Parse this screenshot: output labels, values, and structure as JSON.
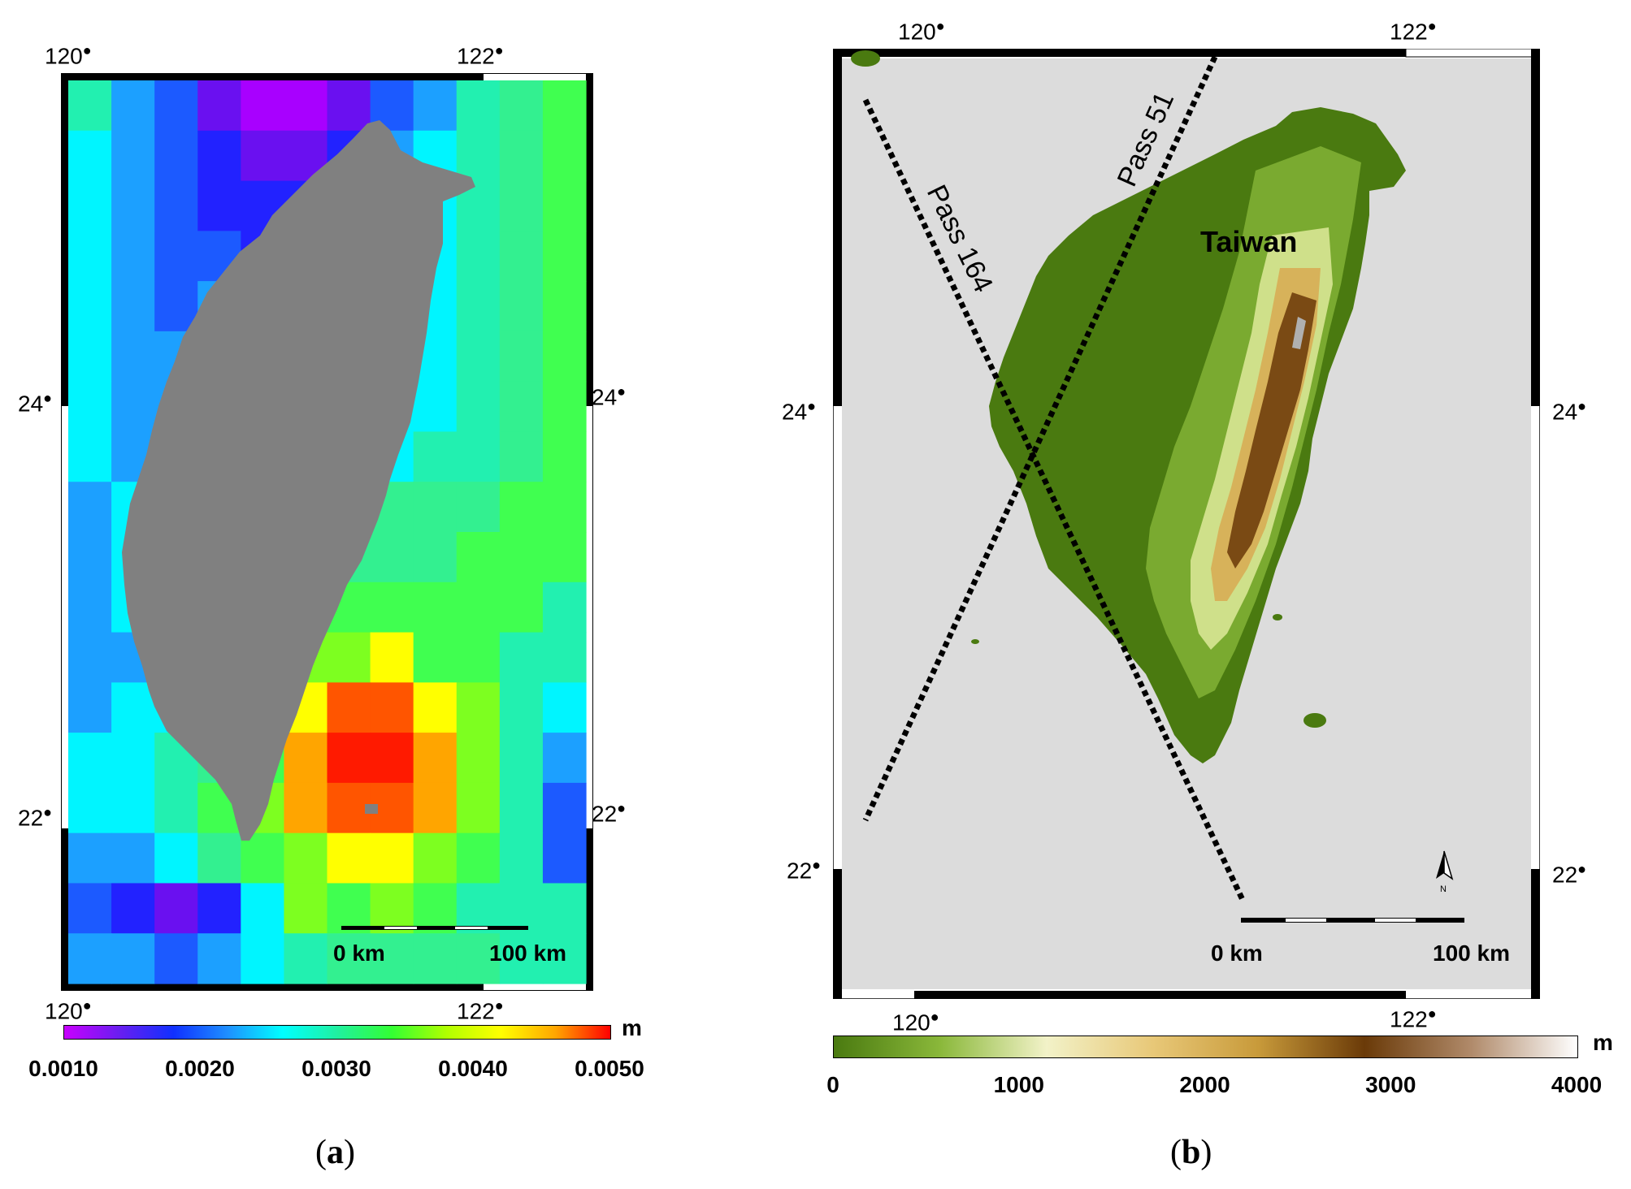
{
  "panel_a": {
    "label_open": "(",
    "label_letter": "a",
    "label_close": ")",
    "lon_top_left": "120",
    "lon_top_right": "122",
    "lon_bottom_left": "120",
    "lon_bottom_right": "122",
    "lat_left_upper": "24",
    "lat_right_upper": "24",
    "lat_left_lower": "22",
    "lat_right_lower": "22",
    "scale_start": "0 km",
    "scale_end": "100 km",
    "colorbar": {
      "unit": "m",
      "ticks": [
        "0.0010",
        "0.0020",
        "0.0030",
        "0.0040",
        "0.0050"
      ],
      "colors": [
        "#c800ff",
        "#6a1ef0",
        "#1030ff",
        "#1e90ff",
        "#00ffff",
        "#20f0a0",
        "#33ff33",
        "#b0ff00",
        "#ffff00",
        "#ffa500",
        "#ff0000"
      ]
    },
    "grid_colors": {
      "land": "#808080",
      "palette": {
        "P": "#a800ff",
        "V": "#6a10f0",
        "B": "#2222ff",
        "D": "#1c5aff",
        "L": "#1ca0ff",
        "C": "#00f5ff",
        "A": "#22f0b0",
        "E": "#33f090",
        "G": "#40ff50",
        "H": "#7dff20",
        "Y": "#ffff00",
        "O": "#ffa500",
        "R": "#ff5500",
        "X": "#ff1a00"
      },
      "rows": [
        "ALDVPPVDLAEG",
        "CLDBVVBLCAEG",
        "CLDBBBLLCAEG",
        "CLDDBLLLCAEG",
        "CLDLLLCCCAEG",
        "CLLLLCCCCAEG",
        "CLLCCCCCCAEG",
        "CLCCCCCCAAEG",
        "LCCCCAEEEEGG",
        "LCCCAEEEEGGG",
        "LCCAEEGGGGGA",
        "LLCAGHHYGGAA",
        "LCCAHYRRYHAC",
        "CCAEGOXXOHAL",
        "CCAGHORROHAD",
        "LLCEGHYYHGAD",
        "DBVBCHGHGAAA",
        "LLDLCAEEEEAA"
      ]
    }
  },
  "panel_b": {
    "label_open": "(",
    "label_letter": "b",
    "label_close": ")",
    "lon_top_left": "120",
    "lon_top_right": "122",
    "lon_bottom_left": "120",
    "lon_bottom_right": "122",
    "lat_left_upper": "24",
    "lat_right_upper": "24",
    "lat_left_lower": "22",
    "lat_right_lower": "22",
    "island_label": "Taiwan",
    "pass_164": "Pass 164",
    "pass_51": "Pass 51",
    "north_arrow_letter": "N",
    "scale_start": "0 km",
    "scale_end": "100 km",
    "colors": {
      "sea": "#dcdcdc",
      "lowland": "#4a7a10",
      "midland": "#7aaa30",
      "hill": "#cfe08a",
      "upland": "#d7b25a",
      "mountain": "#7a4a14",
      "peak": "#b0b0b0"
    },
    "colorbar": {
      "unit": "m",
      "ticks": [
        "0",
        "1000",
        "2000",
        "3000",
        "4000"
      ],
      "colors": [
        "#4a7a10",
        "#8ab83a",
        "#f2f2c8",
        "#e8c878",
        "#c89a3a",
        "#6a3a08",
        "#b08a6a",
        "#ffffff"
      ]
    }
  }
}
